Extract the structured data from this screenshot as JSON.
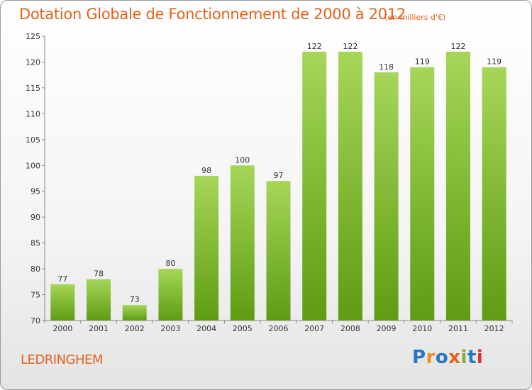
{
  "header": {
    "title": "Dotation Globale de Fonctionnement de 2000 à 2012",
    "subtitle": "(en milliers d'€)"
  },
  "footer": {
    "commune": "LEDRINGHEM",
    "logo_text": "Proxiti",
    "logo_colors": [
      "#2a76c6",
      "#f28c1e",
      "#2a76c6",
      "#e2631c",
      "#7ab13a",
      "#2a76c6",
      "#d9332e"
    ]
  },
  "chart_data": {
    "type": "bar",
    "categories": [
      "2000",
      "2001",
      "2002",
      "2003",
      "2004",
      "2005",
      "2006",
      "2007",
      "2008",
      "2009",
      "2010",
      "2011",
      "2012"
    ],
    "values": [
      77,
      78,
      73,
      80,
      98,
      100,
      97,
      122,
      122,
      118,
      119,
      122,
      119
    ],
    "ylim": [
      70,
      125
    ],
    "yticks": [
      70,
      75,
      80,
      85,
      90,
      95,
      100,
      105,
      110,
      115,
      120,
      125
    ],
    "grid": false,
    "colors": {
      "bar_top": "#a6d658",
      "bar_bottom": "#5e9c13",
      "axis": "#888888"
    }
  }
}
